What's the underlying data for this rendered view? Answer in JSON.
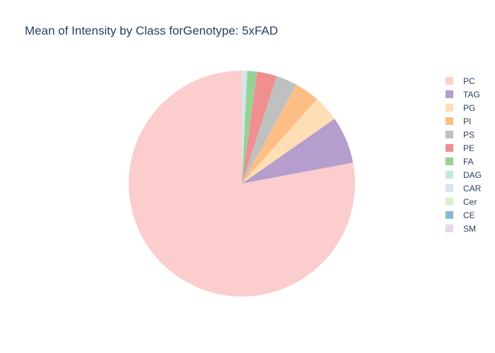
{
  "chart_data": {
    "type": "pie",
    "title": "Mean of Intensity by Class forGenotype: 5xFAD",
    "legend_position": "right",
    "slices": [
      {
        "label": "PC",
        "value": 79.6,
        "color": "#fccdcd"
      },
      {
        "label": "TAG",
        "value": 6.9,
        "color": "#b59dcd"
      },
      {
        "label": "PG",
        "value": 3.8,
        "color": "#fedeb5"
      },
      {
        "label": "PI",
        "value": 3.6,
        "color": "#fdbf86"
      },
      {
        "label": "PS",
        "value": 3.1,
        "color": "#c0c0c0"
      },
      {
        "label": "PE",
        "value": 2.9,
        "color": "#f08f8f"
      },
      {
        "label": "FA",
        "value": 1.4,
        "color": "#98d196"
      },
      {
        "label": "DAG",
        "value": 0.3,
        "color": "#c6e7df"
      },
      {
        "label": "CAR",
        "value": 0.5,
        "color": "#d4e5f0"
      },
      {
        "label": "Cer",
        "value": 0.0,
        "color": "#d9f0c9"
      },
      {
        "label": "CE",
        "value": 0.0,
        "color": "#8ab8d4"
      },
      {
        "label": "SM",
        "value": 0.0,
        "color": "#e3d8e6"
      }
    ]
  }
}
